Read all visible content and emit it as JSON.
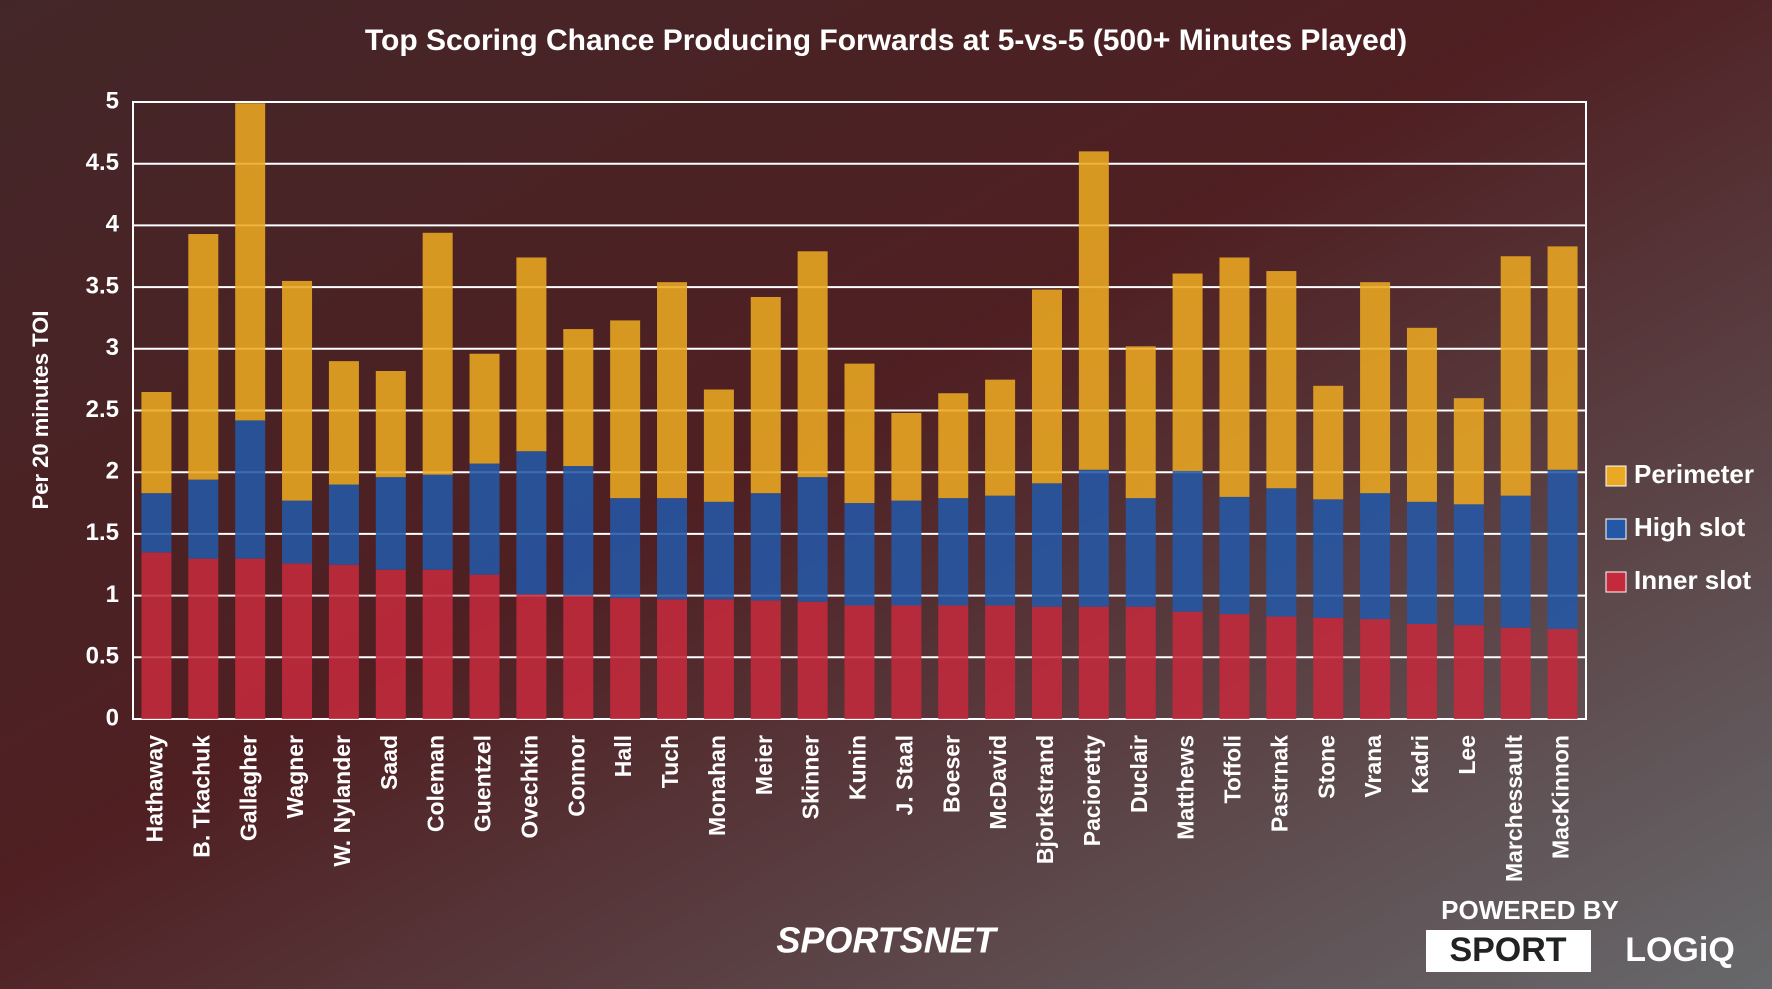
{
  "chart_data": {
    "type": "stacked_bar",
    "title": "Top Scoring Chance Producing Forwards at 5-vs-5 (500+ Minutes Played)",
    "y_label": "Per 20 minutes TOI",
    "categories": [
      "Hathaway",
      "B. Tkachuk",
      "Gallagher",
      "Wagner",
      "W. Nylander",
      "Saad",
      "Coleman",
      "Guentzel",
      "Ovechkin",
      "Connor",
      "Hall",
      "Tuch",
      "Monahan",
      "Meier",
      "Skinner",
      "Kunin",
      "J. Staal",
      "Boeser",
      "McDavid",
      "Bjorkstrand",
      "Pacioretty",
      "Duclair",
      "Matthews",
      "Toffoli",
      "Pastrnak",
      "Stone",
      "Vrana",
      "Kadri",
      "Lee",
      "Marchessault",
      "MacKinnon"
    ],
    "series": [
      {
        "name": "Inner slot",
        "color": "#c42a3c",
        "values": [
          1.35,
          1.3,
          1.3,
          1.26,
          1.25,
          1.21,
          1.21,
          1.17,
          1.01,
          1.0,
          0.98,
          0.97,
          0.97,
          0.96,
          0.95,
          0.92,
          0.92,
          0.92,
          0.92,
          0.91,
          0.91,
          0.91,
          0.87,
          0.85,
          0.83,
          0.82,
          0.81,
          0.77,
          0.76,
          0.74,
          0.73
        ]
      },
      {
        "name": "High slot",
        "color": "#2458a6",
        "values": [
          0.48,
          0.64,
          1.12,
          0.51,
          0.65,
          0.75,
          0.77,
          0.9,
          1.16,
          1.05,
          0.81,
          0.82,
          0.79,
          0.87,
          1.01,
          0.83,
          0.85,
          0.87,
          0.89,
          1.0,
          1.11,
          0.88,
          1.14,
          0.95,
          1.04,
          0.96,
          1.02,
          0.99,
          0.98,
          1.07,
          1.29
        ]
      },
      {
        "name": "Perimeter",
        "color": "#eaa922",
        "values": [
          0.82,
          1.99,
          2.57,
          1.78,
          1.0,
          0.86,
          1.96,
          0.89,
          1.57,
          1.11,
          1.44,
          1.75,
          0.91,
          1.59,
          1.83,
          1.13,
          0.71,
          0.85,
          0.94,
          1.57,
          2.58,
          1.23,
          1.6,
          1.94,
          1.76,
          0.92,
          1.71,
          1.41,
          0.86,
          1.94,
          1.81
        ]
      }
    ],
    "ylim": [
      0,
      5
    ],
    "yticks": [
      0,
      0.5,
      1,
      1.5,
      2,
      2.5,
      3,
      3.5,
      4,
      4.5,
      5
    ],
    "grid": true,
    "legend": "right"
  },
  "branding": {
    "broadcaster": "SPORTSNET",
    "powered_by": "POWERED BY",
    "sport": "SPORT",
    "logiq": "LOGiQ"
  }
}
